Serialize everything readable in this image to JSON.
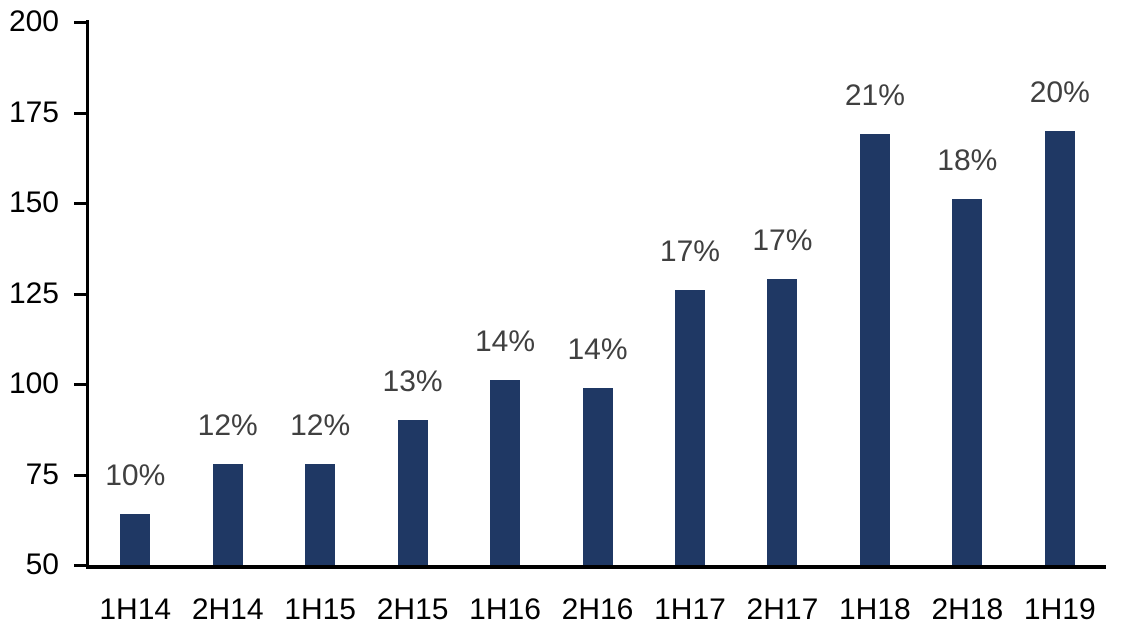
{
  "chart_data": {
    "type": "bar",
    "categories": [
      "1H14",
      "2H14",
      "1H15",
      "2H15",
      "1H16",
      "2H16",
      "1H17",
      "2H17",
      "1H18",
      "2H18",
      "1H19"
    ],
    "values": [
      64,
      78,
      78,
      90,
      101,
      99,
      126,
      129,
      169,
      151,
      170
    ],
    "data_labels": [
      "10%",
      "12%",
      "12%",
      "13%",
      "14%",
      "14%",
      "17%",
      "17%",
      "21%",
      "18%",
      "20%"
    ],
    "title": "",
    "xlabel": "",
    "ylabel": "",
    "ylim": [
      50,
      200
    ],
    "yticks": [
      50,
      75,
      100,
      125,
      150,
      175,
      200
    ],
    "grid": false,
    "legend_position": "none",
    "bar_color": "#1f3864",
    "data_label_color": "#404040",
    "axis_color": "#000000",
    "axis_label_color": "#000000"
  }
}
